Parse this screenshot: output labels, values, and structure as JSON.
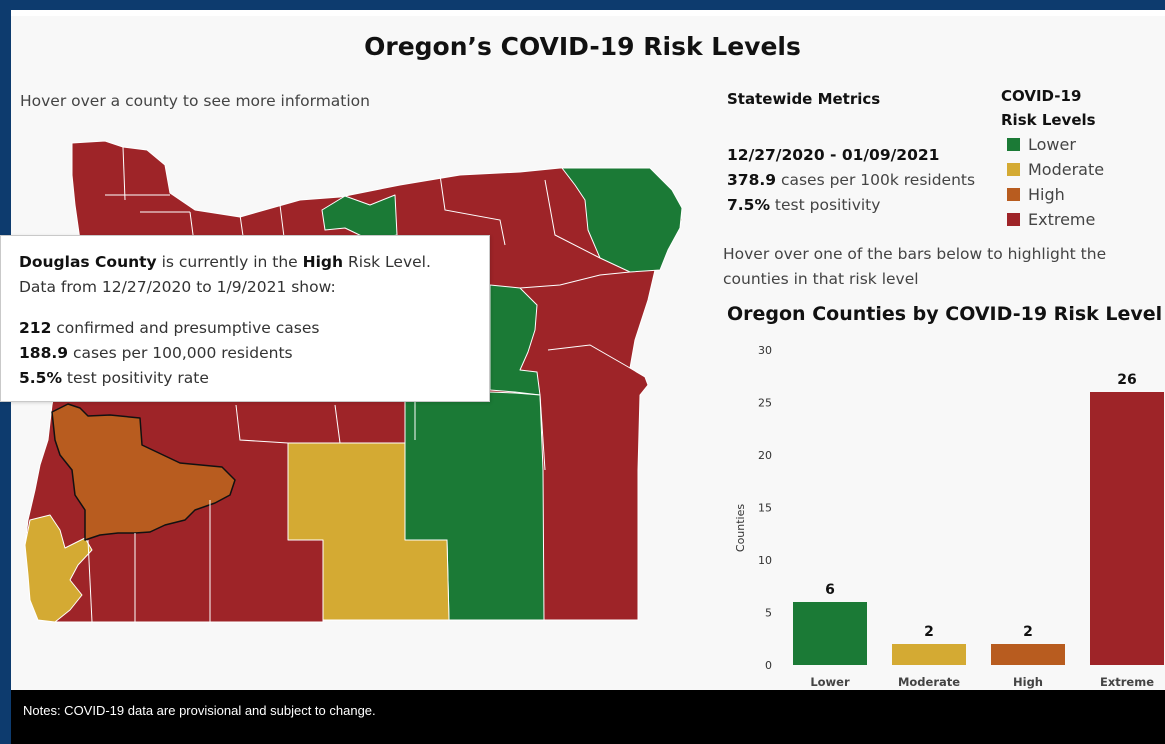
{
  "title": "Oregon’s COVID-19 Risk Levels",
  "hover_hint": "Hover over a county to see more information",
  "colors": {
    "lower": "#1b7a36",
    "moderate": "#d4aa33",
    "high": "#b85c1f",
    "extreme": "#9e2428",
    "frame": "#0d3b6e"
  },
  "tooltip": {
    "county": "Douglas County",
    "text_a": " is currently in the ",
    "level": "High",
    "text_b": " Risk Level.",
    "line2": "Data from 12/27/2020 to 1/9/2021 show:",
    "cases": "212",
    "cases_label": " confirmed and presumptive cases",
    "rate": "188.9",
    "rate_label": " cases per 100,000 residents",
    "positivity": "5.5%",
    "positivity_label": " test positivity rate"
  },
  "statewide": {
    "heading": "Statewide Metrics",
    "dates": "12/27/2020 - 01/09/2021",
    "rate": "378.9",
    "rate_label": " cases per 100k residents",
    "positivity": "7.5%",
    "positivity_label": " test positivity"
  },
  "legend": {
    "title_line1": "COVID-19",
    "title_line2": "Risk Levels",
    "items": [
      {
        "label": "Lower",
        "color": "#1b7a36"
      },
      {
        "label": "Moderate",
        "color": "#d4aa33"
      },
      {
        "label": "High",
        "color": "#b85c1f"
      },
      {
        "label": "Extreme",
        "color": "#9e2428"
      }
    ]
  },
  "bar_hint": "Hover over one of the bars below to highlight the counties in that risk level",
  "chart_title": "Oregon Counties by COVID-19 Risk Level",
  "chart_data": {
    "type": "bar",
    "title": "Oregon Counties by COVID-19 Risk Level",
    "ylabel": "Counties",
    "xlabel": "",
    "ylim": [
      0,
      30
    ],
    "yticks": [
      0,
      5,
      10,
      15,
      20,
      25,
      30
    ],
    "grid": false,
    "categories": [
      "Lower",
      "Moderate",
      "High",
      "Extreme"
    ],
    "values": [
      6,
      2,
      2,
      26
    ],
    "colors": [
      "#1b7a36",
      "#d4aa33",
      "#b85c1f",
      "#9e2428"
    ]
  },
  "footer_note": "Notes: COVID-19 data are provisional and subject to change."
}
